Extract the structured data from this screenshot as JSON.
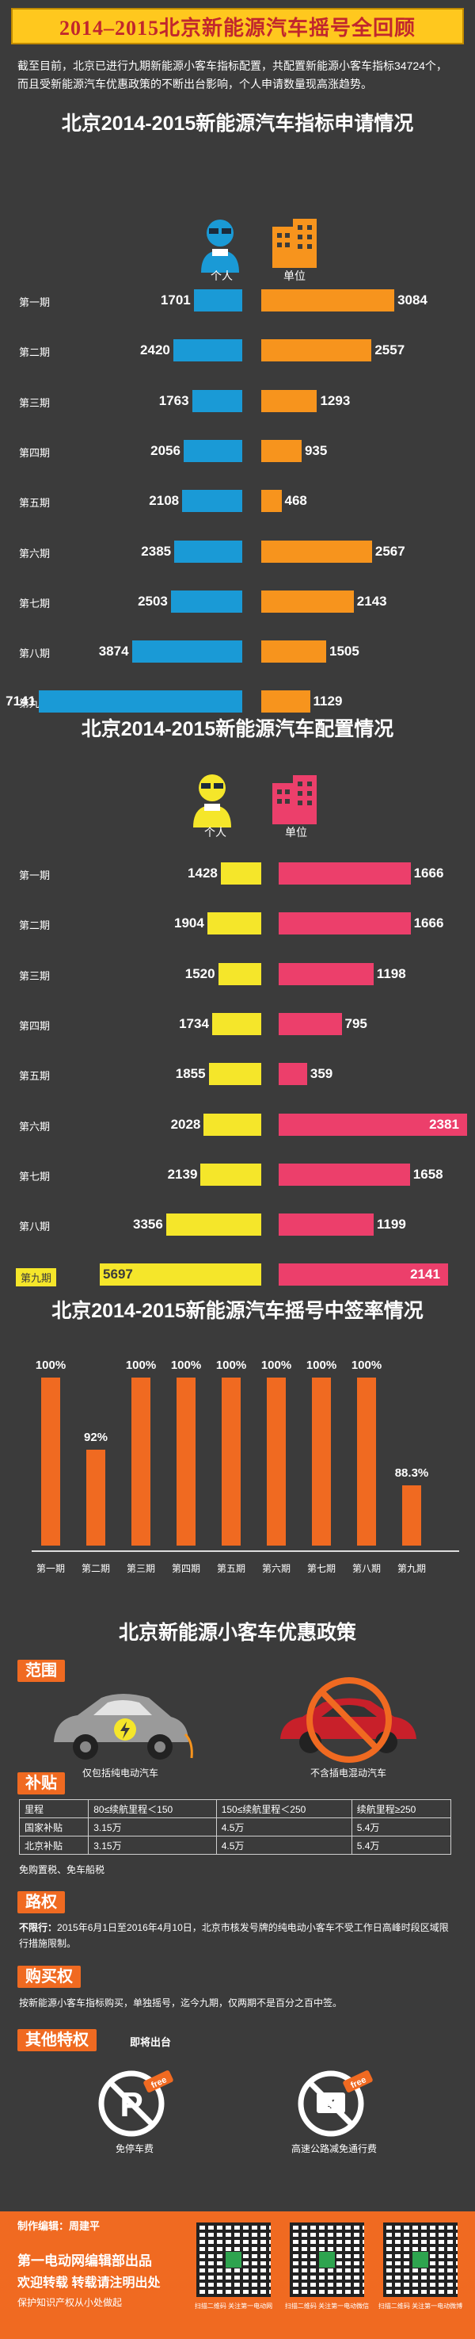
{
  "title": "2014–2015北京新能源汽车摇号全回顾",
  "intro": "截至目前，北京已进行九期新能源小客车指标配置，共配置新能源小客车指标34724个，而且受新能源汽车优惠政策的不断出台影响，个人申请数量现高涨趋势。",
  "colors": {
    "person_apply": "#1a9ad6",
    "unit_apply": "#f7941d",
    "person_alloc": "#f5e62a",
    "unit_alloc": "#ec3f6b",
    "rate": "#f06a21"
  },
  "legend": {
    "person": "个人",
    "unit": "单位"
  },
  "chart_data": [
    {
      "type": "bar",
      "title": "北京2014-2015新能源汽车指标申请情况",
      "categories": [
        "第一期",
        "第二期",
        "第三期",
        "第四期",
        "第五期",
        "第六期",
        "第七期",
        "第八期",
        "第九期"
      ],
      "series": [
        {
          "name": "个人",
          "values": [
            1701,
            2420,
            1763,
            2056,
            2108,
            2385,
            2503,
            3874,
            7141
          ]
        },
        {
          "name": "单位",
          "values": [
            3084,
            2557,
            1293,
            935,
            468,
            2567,
            2143,
            1505,
            1129
          ]
        }
      ]
    },
    {
      "type": "bar",
      "title": "北京2014-2015新能源汽车配置情况",
      "categories": [
        "第一期",
        "第二期",
        "第三期",
        "第四期",
        "第五期",
        "第六期",
        "第七期",
        "第八期",
        "第九期"
      ],
      "series": [
        {
          "name": "个人",
          "values": [
            1428,
            1904,
            1520,
            1734,
            1855,
            2028,
            2139,
            3356,
            5697
          ]
        },
        {
          "name": "单位",
          "values": [
            1666,
            1666,
            1198,
            795,
            359,
            2381,
            1658,
            1199,
            2141
          ]
        }
      ]
    },
    {
      "type": "bar",
      "title": "北京2014-2015新能源汽车摇号中签率情况",
      "categories": [
        "第一期",
        "第二期",
        "第三期",
        "第四期",
        "第五期",
        "第六期",
        "第七期",
        "第八期",
        "第九期"
      ],
      "values": [
        100,
        92,
        100,
        100,
        100,
        100,
        100,
        100,
        88.3
      ],
      "labels": [
        "100%",
        "92%",
        "100%",
        "100%",
        "100%",
        "100%",
        "100%",
        "100%",
        "88.3%"
      ],
      "ylim": [
        0,
        100
      ]
    }
  ],
  "policy": {
    "title": "北京新能源小客车优惠政策",
    "scope_tag": "范围",
    "scope_yes": "仅包括纯电动汽车",
    "scope_no": "不含插电混动汽车",
    "subsidy_tag": "补贴",
    "table_header": [
      "里程",
      "80≤续航里程＜150",
      "150≤续航里程＜250",
      "续航里程≥250"
    ],
    "table_rows": [
      [
        "国家补贴",
        "3.15万",
        "4.5万",
        "5.4万"
      ],
      [
        "北京补贴",
        "3.15万",
        "4.5万",
        "5.4万"
      ]
    ],
    "tax_note": "免购置税、免车船税",
    "road_tag": "路权",
    "road_bold": "不限行：",
    "road_text": "2015年6月1日至2016年4月10日，北京市核发号牌的纯电动小客车不受工作日高峰时段区域限行措施限制。",
    "buy_tag": "购买权",
    "buy_text": "按新能源小客车指标购买，单独摇号，迄今九期，仅两期不是百分之百中签。",
    "other_tag": "其他特权",
    "other_note": "即将出台",
    "free_badge": "free",
    "perk1": "免停车费",
    "perk2": "高速公路减免通行费"
  },
  "footer": {
    "editor": "制作编辑：周建平",
    "line1": "第一电动网编辑部出品",
    "line2": "欢迎转载  转载请注明出处",
    "line3": "保护知识产权从小处做起",
    "qr_captions": [
      "扫描二维码 关注第一电动网",
      "扫描二维码 关注第一电动微信",
      "扫描二维码 关注第一电动微博"
    ]
  }
}
